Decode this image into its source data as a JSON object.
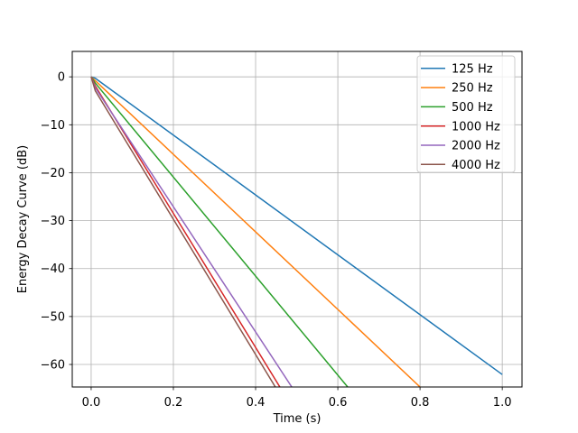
{
  "chart_data": {
    "type": "line",
    "title": "",
    "xlabel": "Time (s)",
    "ylabel": "Energy Decay Curve (dB)",
    "xlim": [
      -0.046,
      1.048
    ],
    "ylim": [
      -64.7,
      5.3
    ],
    "grid": true,
    "grid_color": "#b0b0b0",
    "spine_color": "#000000",
    "background_color": "#ffffff",
    "legend_position": "upper right",
    "xticks": [
      {
        "value": 0.0,
        "label": "0.0"
      },
      {
        "value": 0.2,
        "label": "0.2"
      },
      {
        "value": 0.4,
        "label": "0.4"
      },
      {
        "value": 0.6,
        "label": "0.6"
      },
      {
        "value": 0.8,
        "label": "0.8"
      },
      {
        "value": 1.0,
        "label": "1.0"
      }
    ],
    "yticks": [
      {
        "value": 0,
        "label": "0"
      },
      {
        "value": -10,
        "label": "−10"
      },
      {
        "value": -20,
        "label": "−20"
      },
      {
        "value": -30,
        "label": "−30"
      },
      {
        "value": -40,
        "label": "−40"
      },
      {
        "value": -50,
        "label": "−50"
      },
      {
        "value": -60,
        "label": "−60"
      }
    ],
    "series": [
      {
        "name": "125 Hz",
        "color": "#1f77b4",
        "decay_rate_db_per_s": 62.4,
        "points": [
          [
            0,
            0
          ],
          [
            0.01,
            -0.3
          ],
          [
            1.0,
            -62.1
          ]
        ]
      },
      {
        "name": "250 Hz",
        "color": "#ff7f0e",
        "decay_rate_db_per_s": 80.9,
        "points": [
          [
            0,
            0
          ],
          [
            0.01,
            -0.8
          ],
          [
            0.8,
            -64.7
          ]
        ]
      },
      {
        "name": "500 Hz",
        "color": "#2ca02c",
        "decay_rate_db_per_s": 103.3,
        "points": [
          [
            0,
            0
          ],
          [
            0.01,
            -1.3
          ],
          [
            0.624,
            -64.7
          ]
        ]
      },
      {
        "name": "1000 Hz",
        "color": "#d62728",
        "decay_rate_db_per_s": 139.9,
        "points": [
          [
            0,
            0
          ],
          [
            0.01,
            -1.9
          ],
          [
            0.459,
            -64.7
          ]
        ]
      },
      {
        "name": "2000 Hz",
        "color": "#9467bd",
        "decay_rate_db_per_s": 130.5,
        "points": [
          [
            0,
            0
          ],
          [
            0.01,
            -2.3
          ],
          [
            0.488,
            -64.7
          ]
        ]
      },
      {
        "name": "4000 Hz",
        "color": "#8c564b",
        "decay_rate_db_per_s": 141.1,
        "points": [
          [
            0,
            0
          ],
          [
            0.01,
            -2.9
          ],
          [
            0.448,
            -64.7
          ]
        ]
      }
    ]
  }
}
